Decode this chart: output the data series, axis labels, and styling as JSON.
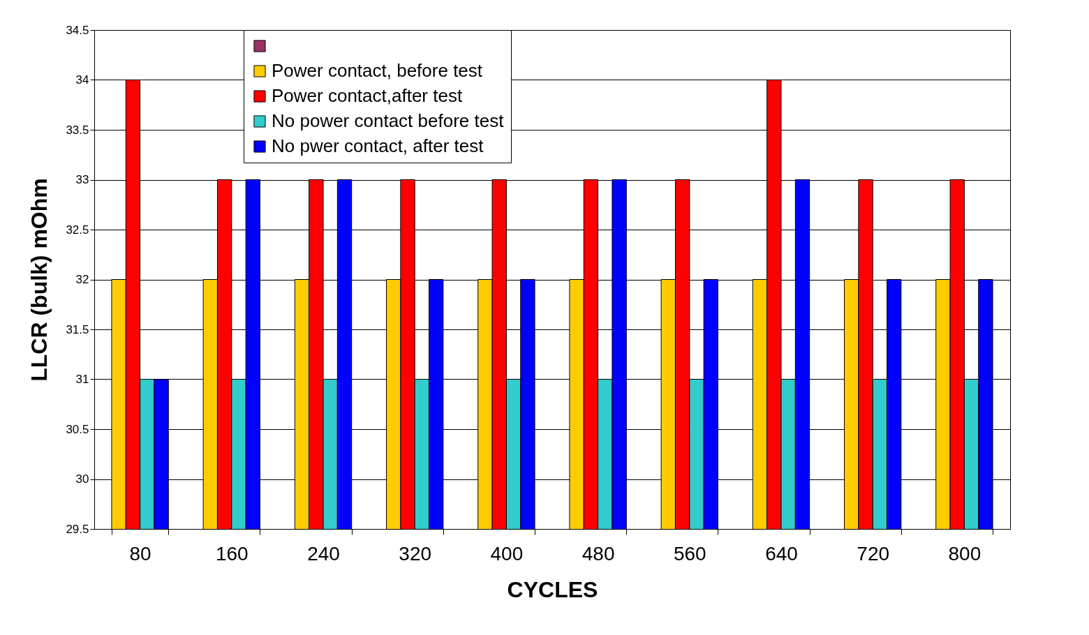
{
  "chart_data": {
    "type": "bar",
    "xlabel": "CYCLES",
    "ylabel": "LLCR (bulk) mOhm",
    "categories": [
      "80",
      "160",
      "240",
      "320",
      "400",
      "480",
      "560",
      "640",
      "720",
      "800"
    ],
    "series": [
      {
        "color": "#993366",
        "values": [
          null,
          null,
          null,
          null,
          null,
          null,
          null,
          null,
          null,
          null
        ]
      },
      {
        "name": "Power contact, before test",
        "color": "#ffcc00",
        "values": [
          32,
          32,
          32,
          32,
          32,
          32,
          32,
          32,
          32,
          32
        ]
      },
      {
        "name": "Power contact,after test",
        "color": "#ff0000",
        "values": [
          34,
          33,
          33,
          33,
          33,
          33,
          33,
          34,
          33,
          33
        ]
      },
      {
        "name": "No power contact before test",
        "color": "#33cccc",
        "values": [
          31,
          31,
          31,
          31,
          31,
          31,
          31,
          31,
          31,
          31
        ]
      },
      {
        "name": "No pwer contact, after test",
        "color": "#0000ff",
        "values": [
          31,
          33,
          33,
          32,
          32,
          33,
          32,
          33,
          32,
          32
        ]
      }
    ],
    "ylim": [
      29.5,
      34.5
    ],
    "yticks": [
      29.5,
      30,
      30.5,
      31,
      31.5,
      32,
      32.5,
      33,
      33.5,
      34,
      34.5
    ],
    "grid": "y",
    "legend": "top left"
  }
}
